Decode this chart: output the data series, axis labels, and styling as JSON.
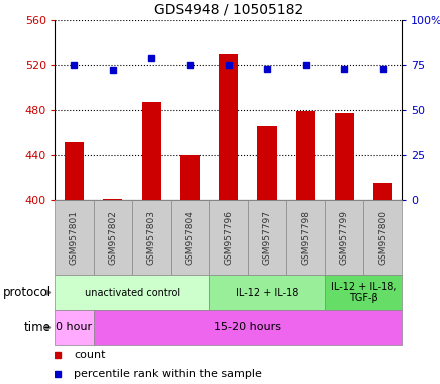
{
  "title": "GDS4948 / 10505182",
  "samples": [
    "GSM957801",
    "GSM957802",
    "GSM957803",
    "GSM957804",
    "GSM957796",
    "GSM957797",
    "GSM957798",
    "GSM957799",
    "GSM957800"
  ],
  "counts": [
    452,
    401,
    487,
    440,
    530,
    466,
    479,
    477,
    415
  ],
  "percentile_ranks": [
    75,
    72,
    79,
    75,
    75,
    73,
    75,
    73,
    73
  ],
  "ylim_left": [
    400,
    560
  ],
  "ylim_right": [
    0,
    100
  ],
  "yticks_left": [
    400,
    440,
    480,
    520,
    560
  ],
  "yticks_right": [
    0,
    25,
    50,
    75,
    100
  ],
  "bar_color": "#cc0000",
  "dot_color": "#0000cc",
  "protocol_groups": [
    {
      "label": "unactivated control",
      "start": 0,
      "end": 4,
      "color": "#ccffcc"
    },
    {
      "label": "IL-12 + IL-18",
      "start": 4,
      "end": 7,
      "color": "#99ee99"
    },
    {
      "label": "IL-12 + IL-18,\nTGF-β",
      "start": 7,
      "end": 9,
      "color": "#66dd66"
    }
  ],
  "time_groups": [
    {
      "label": "0 hour",
      "start": 0,
      "end": 1,
      "color": "#ffaaff"
    },
    {
      "label": "15-20 hours",
      "start": 1,
      "end": 9,
      "color": "#ee66ee"
    }
  ],
  "legend_count_label": "count",
  "legend_pct_label": "percentile rank within the sample",
  "protocol_label": "protocol",
  "time_label": "time",
  "left_axis_color": "#cc0000",
  "right_axis_color": "#0000cc",
  "grid_color": "#000000",
  "sample_box_color": "#cccccc",
  "sample_text_color": "#333333",
  "fig_width": 4.4,
  "fig_height": 3.84,
  "dpi": 100
}
